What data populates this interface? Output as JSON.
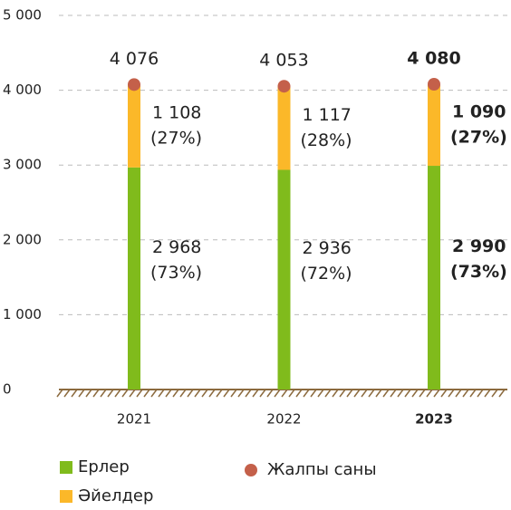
{
  "chart_data": {
    "type": "stacked-bar",
    "categories": [
      "2021",
      "2022",
      "2023"
    ],
    "highlight_category": "2023",
    "series": [
      {
        "name": "Ерлер",
        "color": "#80bb1c",
        "values": [
          2968,
          2936,
          2990
        ],
        "value_labels": [
          "2 968",
          "2 936",
          "2 990"
        ],
        "share_labels": [
          "(73%)",
          "(72%)",
          "(73%)"
        ]
      },
      {
        "name": "Әйелдер",
        "color": "#fbb829",
        "values": [
          1108,
          1117,
          1090
        ],
        "value_labels": [
          "1 108",
          "1 117",
          "1 090"
        ],
        "share_labels": [
          "(27%)",
          "(28%)",
          "(27%)"
        ]
      }
    ],
    "total": {
      "name": "Жалпы саны",
      "color": "#c4604a",
      "values": [
        4076,
        4053,
        4080
      ],
      "value_labels": [
        "4 076",
        "4 053",
        "4 080"
      ]
    },
    "ylim": [
      0,
      5000
    ],
    "yticks": [
      0,
      {
        "value": 1000,
        "label": "1 000"
      },
      {
        "value": 2000,
        "label": "2 000"
      },
      {
        "value": 3000,
        "label": "3 000"
      },
      {
        "value": 4000,
        "label": "4 000"
      },
      {
        "value": 5000,
        "label": "5 000"
      }
    ],
    "grid": true
  }
}
